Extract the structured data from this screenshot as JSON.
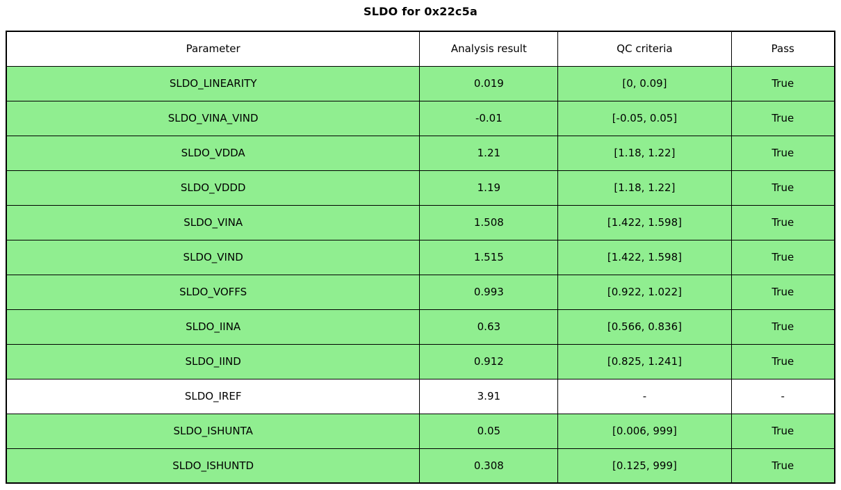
{
  "title": "SLDO for 0x22c5a",
  "colors": {
    "pass_green": "#90EE90",
    "plain_row": "#ffffff",
    "border": "#000000",
    "text": "#000000"
  },
  "chart_data": {
    "type": "table",
    "title": "SLDO for 0x22c5a",
    "columns": [
      "Parameter",
      "Analysis result",
      "QC criteria",
      "Pass"
    ],
    "rows": [
      {
        "parameter": "SLDO_LINEARITY",
        "analysis_result": "0.019",
        "qc_criteria": "[0, 0.09]",
        "pass": "True",
        "highlighted": true
      },
      {
        "parameter": "SLDO_VINA_VIND",
        "analysis_result": "-0.01",
        "qc_criteria": "[-0.05, 0.05]",
        "pass": "True",
        "highlighted": true
      },
      {
        "parameter": "SLDO_VDDA",
        "analysis_result": "1.21",
        "qc_criteria": "[1.18, 1.22]",
        "pass": "True",
        "highlighted": true
      },
      {
        "parameter": "SLDO_VDDD",
        "analysis_result": "1.19",
        "qc_criteria": "[1.18, 1.22]",
        "pass": "True",
        "highlighted": true
      },
      {
        "parameter": "SLDO_VINA",
        "analysis_result": "1.508",
        "qc_criteria": "[1.422, 1.598]",
        "pass": "True",
        "highlighted": true
      },
      {
        "parameter": "SLDO_VIND",
        "analysis_result": "1.515",
        "qc_criteria": "[1.422, 1.598]",
        "pass": "True",
        "highlighted": true
      },
      {
        "parameter": "SLDO_VOFFS",
        "analysis_result": "0.993",
        "qc_criteria": "[0.922, 1.022]",
        "pass": "True",
        "highlighted": true
      },
      {
        "parameter": "SLDO_IINA",
        "analysis_result": "0.63",
        "qc_criteria": "[0.566, 0.836]",
        "pass": "True",
        "highlighted": true
      },
      {
        "parameter": "SLDO_IIND",
        "analysis_result": "0.912",
        "qc_criteria": "[0.825, 1.241]",
        "pass": "True",
        "highlighted": true
      },
      {
        "parameter": "SLDO_IREF",
        "analysis_result": "3.91",
        "qc_criteria": "-",
        "pass": "-",
        "highlighted": false
      },
      {
        "parameter": "SLDO_ISHUNTA",
        "analysis_result": "0.05",
        "qc_criteria": "[0.006, 999]",
        "pass": "True",
        "highlighted": true
      },
      {
        "parameter": "SLDO_ISHUNTD",
        "analysis_result": "0.308",
        "qc_criteria": "[0.125, 999]",
        "pass": "True",
        "highlighted": true
      }
    ],
    "layout": {
      "column_width_percents": [
        49.9,
        16.7,
        20.9,
        12.5
      ],
      "header_background": "#ffffff",
      "grid": true
    }
  }
}
